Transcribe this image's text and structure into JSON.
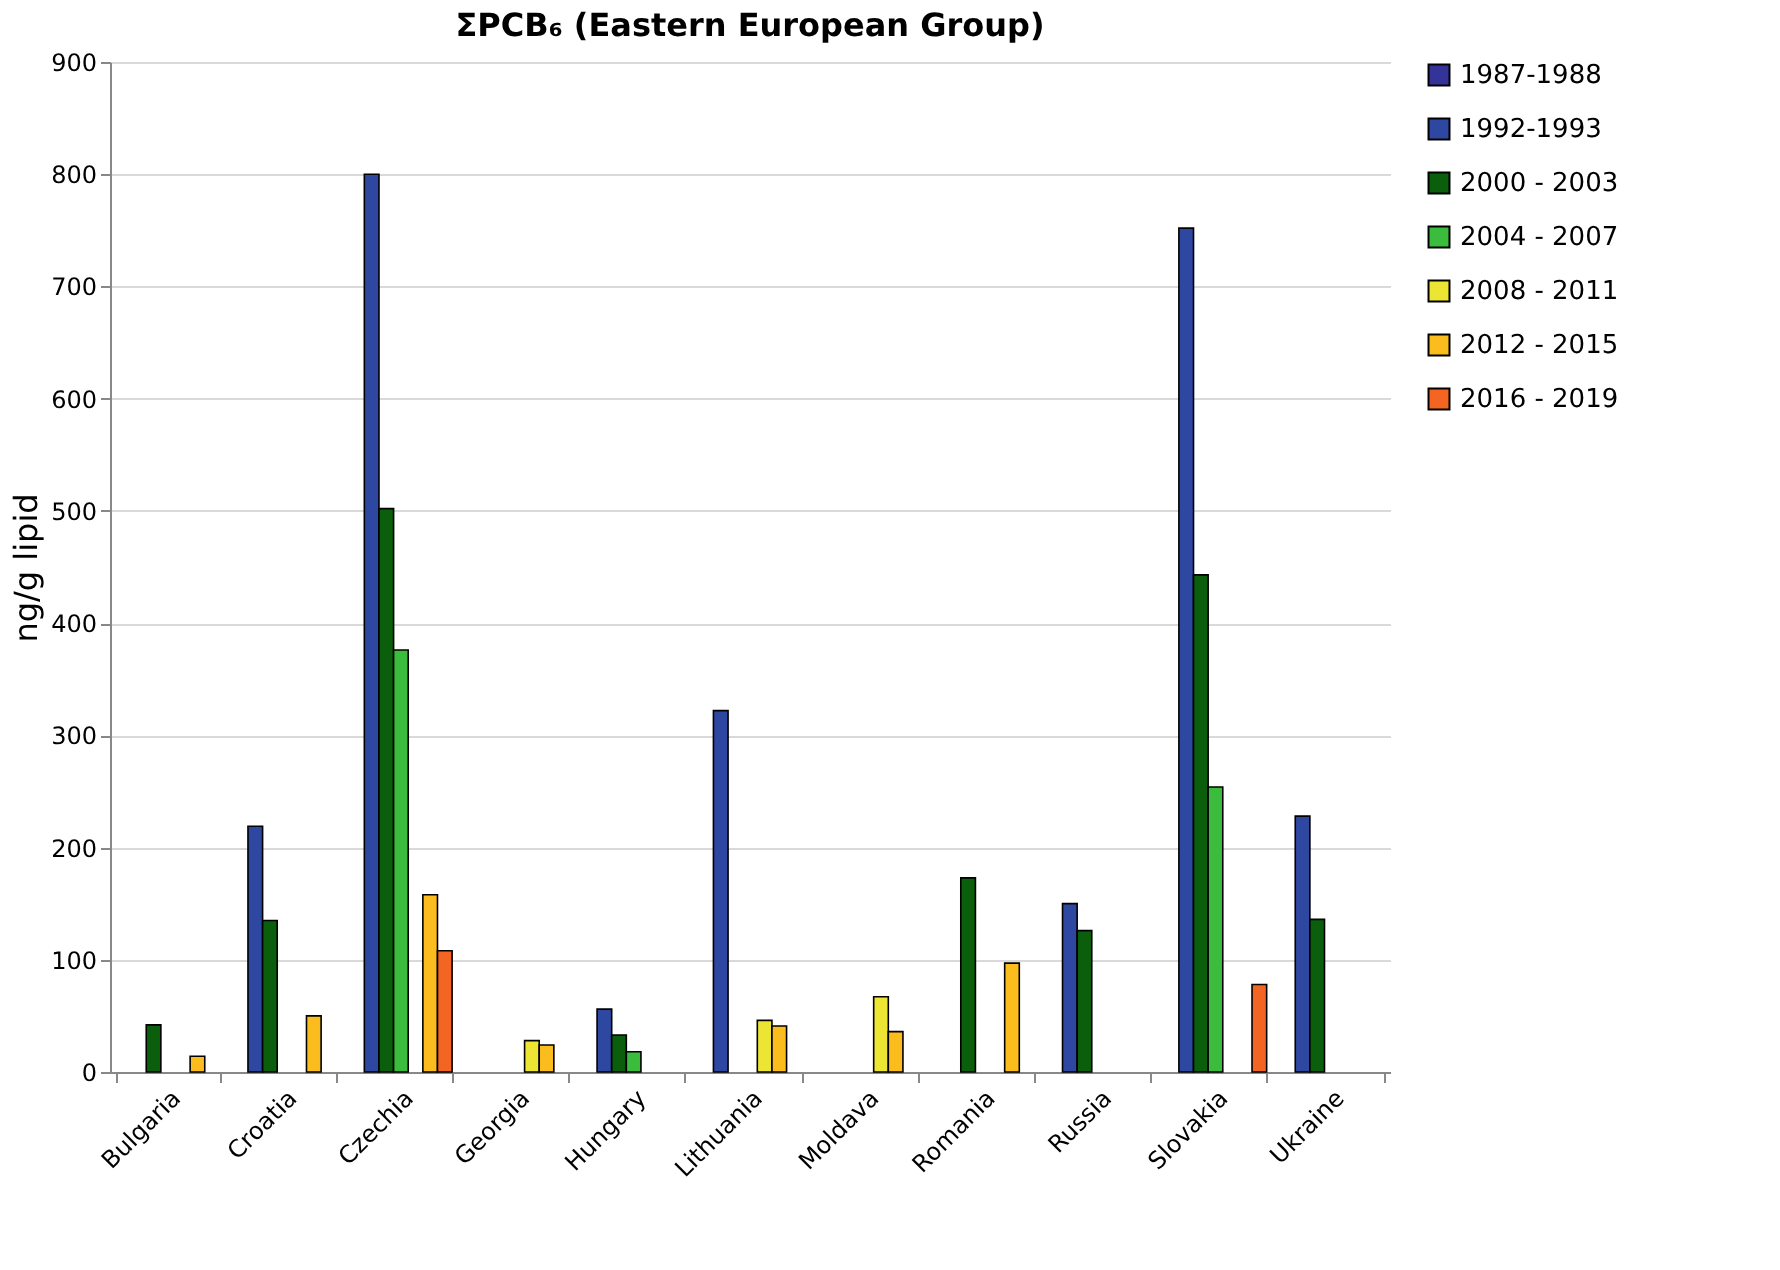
{
  "chart_data": {
    "type": "bar",
    "title": "ΣPCB₆ (Eastern European Group)",
    "ylabel": "ng/g lipid",
    "categories": [
      "Bulgaria",
      "Croatia",
      "Czechia",
      "Georgia",
      "Hungary",
      "Lithuania",
      "Moldava",
      "Romania",
      "Russia",
      "Slovakia",
      "Ukraine"
    ],
    "series": [
      {
        "name": "1987-1988",
        "color": "#333399",
        "values": [
          null,
          null,
          null,
          null,
          null,
          null,
          null,
          null,
          null,
          null,
          null
        ]
      },
      {
        "name": "1992-1993",
        "color": "#2e47a0",
        "values": [
          null,
          219,
          800,
          null,
          56,
          322,
          null,
          null,
          150,
          752,
          228
        ]
      },
      {
        "name": "2000 - 2003",
        "color": "#0b5e0b",
        "values": [
          42,
          135,
          502,
          null,
          33,
          null,
          null,
          173,
          126,
          443,
          136
        ]
      },
      {
        "name": "2004 - 2007",
        "color": "#3cbc3c",
        "values": [
          null,
          null,
          376,
          null,
          18,
          null,
          null,
          null,
          null,
          254,
          null
        ]
      },
      {
        "name": "2008 - 2011",
        "color": "#ede533",
        "values": [
          null,
          null,
          null,
          28,
          null,
          46,
          67,
          null,
          null,
          null,
          null
        ]
      },
      {
        "name": "2012 - 2015",
        "color": "#fbbd1e",
        "values": [
          14,
          50,
          158,
          24,
          null,
          41,
          36,
          97,
          null,
          null,
          null
        ]
      },
      {
        "name": "2016 - 2019",
        "color": "#f26522",
        "values": [
          null,
          null,
          108,
          null,
          null,
          null,
          null,
          null,
          null,
          78,
          null
        ]
      }
    ],
    "ylim": [
      0,
      900
    ],
    "yticks": [
      0,
      100,
      200,
      300,
      400,
      500,
      600,
      700,
      800,
      900
    ],
    "grid": "y",
    "legend": "right"
  }
}
